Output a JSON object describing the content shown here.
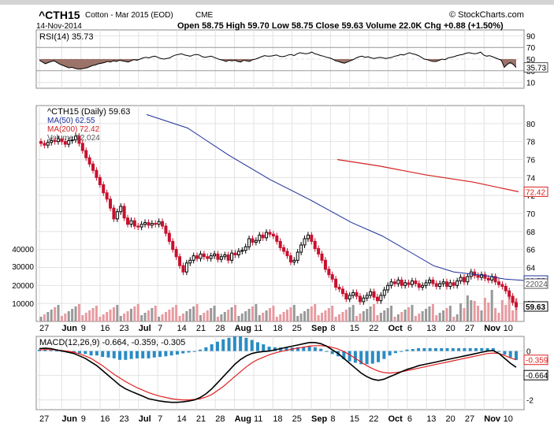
{
  "header": {
    "symbol": "^CTH15",
    "description": "Cotton - Mar 2015 (EOD)",
    "exchange": "CME",
    "copyright": "© StockCharts.com",
    "date": "14-Nov-2014",
    "ohlc_line": "Open 58.75  High 59.70  Low 58.75  Close 59.63  Volume 22.0K  Chg +0.88 (+1.50%)"
  },
  "colors": {
    "up": "#000000",
    "down": "#c8102e",
    "ma50": "#1f2f9a",
    "ma200": "#d42020",
    "rsi_fill": "#8b5a4f",
    "macd_hist": "#2a8cc4",
    "macd_line": "#000000",
    "signal_line": "#e02020",
    "volume": "#999999",
    "volume_down": "#e89aa0"
  },
  "chart_data": [
    {
      "type": "line",
      "title": "RSI(14) 35.73",
      "series": [
        {
          "name": "RSI(14)",
          "values": [
            48,
            45,
            42,
            44,
            46,
            47,
            44,
            41,
            39,
            37,
            35,
            36,
            34,
            33,
            33,
            34,
            35,
            37,
            39,
            40,
            42,
            43,
            44,
            46,
            45,
            47,
            46,
            48,
            47,
            46,
            45,
            47,
            49,
            48,
            50,
            52,
            53,
            52,
            54,
            55,
            53,
            51,
            50,
            51,
            52,
            55,
            57,
            58,
            59,
            57,
            56,
            55,
            57,
            58,
            57,
            54,
            53,
            54,
            55,
            53,
            51,
            49,
            48,
            46,
            48,
            47,
            48,
            46,
            45,
            48,
            47,
            46,
            49,
            50,
            52,
            54,
            56,
            55,
            55,
            56,
            57,
            55,
            54,
            55,
            57,
            58,
            56,
            59,
            61,
            60,
            59,
            60,
            62,
            59,
            58,
            56,
            55,
            53,
            52,
            50,
            47,
            46,
            44,
            43,
            45,
            47,
            49,
            52,
            54,
            55,
            53,
            54,
            52,
            51,
            52,
            53,
            52,
            51,
            52,
            53,
            55,
            56,
            58,
            57,
            59,
            61,
            59,
            58,
            56,
            53,
            50,
            49,
            47,
            46,
            46,
            48,
            50,
            49,
            52,
            53,
            54,
            56,
            57,
            58,
            60,
            61,
            60,
            59,
            60,
            62,
            57,
            55,
            56,
            54,
            52,
            50,
            48,
            36,
            41,
            44,
            41,
            35.73
          ]
        }
      ],
      "ylim": [
        0,
        100
      ],
      "yticks": [
        10,
        30,
        50,
        70,
        90
      ],
      "current_label": "35.73"
    },
    {
      "type": "candlestick",
      "title": "^CTH15 (Daily) 59.63",
      "legend": [
        "MA(50) 62.55",
        "MA(200) 72.42",
        "Volume 22,024"
      ],
      "ylim": [
        58,
        82
      ],
      "yticks": [
        60,
        62,
        64,
        66,
        68,
        70,
        72,
        74,
        76,
        78,
        80
      ],
      "volume_ticks": [
        "10000",
        "20000",
        "30000",
        "40000"
      ],
      "close": [
        77.8,
        77.6,
        77.9,
        78.1,
        78.0,
        78.3,
        78.0,
        77.7,
        78.1,
        78.2,
        78.6,
        77.8,
        77.0,
        76.2,
        75.5,
        74.8,
        74.0,
        73.2,
        72.3,
        71.6,
        70.6,
        69.4,
        70.2,
        70.8,
        69.5,
        68.8,
        69.2,
        68.6,
        68.5,
        68.8,
        69.0,
        68.7,
        68.9,
        68.8,
        69.1,
        68.6,
        67.8,
        66.9,
        66.0,
        65.2,
        64.2,
        63.5,
        64.5,
        64.8,
        65.3,
        65.0,
        65.5,
        65.2,
        65.0,
        65.3,
        65.5,
        64.9,
        65.2,
        65.4,
        64.8,
        65.6,
        65.4,
        65.8,
        65.9,
        66.3,
        67.2,
        66.8,
        67.0,
        67.6,
        67.3,
        67.9,
        67.7,
        67.5,
        66.9,
        66.2,
        65.8,
        65.3,
        64.6,
        64.8,
        65.7,
        66.5,
        67.2,
        67.6,
        66.9,
        66.1,
        65.5,
        64.8,
        63.8,
        63.2,
        62.7,
        61.8,
        61.6,
        61.1,
        60.5,
        60.9,
        61.2,
        60.8,
        60.2,
        60.6,
        60.9,
        61.3,
        60.7,
        60.3,
        60.9,
        61.5,
        62.0,
        62.4,
        62.2,
        62.6,
        62.0,
        62.3,
        62.1,
        62.5,
        62.2,
        61.8,
        62.0,
        62.3,
        62.6,
        62.2,
        61.9,
        62.2,
        62.4,
        61.9,
        62.3,
        62.0,
        62.5,
        62.9,
        62.4,
        63.0,
        63.5,
        63.1,
        62.9,
        63.2,
        62.8,
        62.6,
        63.0,
        62.4,
        62.1,
        61.9,
        61.4,
        60.8,
        60.1,
        59.63
      ]
    },
    {
      "type": "line",
      "title": "MACD(12,26,9) -0.664, -0.359, -0.305",
      "series": [
        {
          "name": "MACD",
          "values": [
            0.1,
            0.12,
            0.1,
            0.05,
            0,
            -0.05,
            -0.1,
            -0.2,
            -0.3,
            -0.45,
            -0.6,
            -0.8,
            -1.0,
            -1.2,
            -1.4,
            -1.55,
            -1.65,
            -1.75,
            -1.85,
            -1.95,
            -2.0,
            -2.05,
            -2.08,
            -2.1,
            -2.1,
            -2.08,
            -2.05,
            -2.0,
            -1.9,
            -1.75,
            -1.55,
            -1.3,
            -1.05,
            -0.8,
            -0.55,
            -0.35,
            -0.2,
            -0.1,
            -0.05,
            -0.02,
            0.0,
            0.05,
            0.1,
            0.15,
            0.2,
            0.25,
            0.3,
            0.35,
            0.35,
            0.3,
            0.2,
            0.05,
            -0.1,
            -0.3,
            -0.5,
            -0.7,
            -0.9,
            -1.05,
            -1.15,
            -1.2,
            -1.15,
            -1.05,
            -0.95,
            -0.85,
            -0.75,
            -0.68,
            -0.6,
            -0.55,
            -0.5,
            -0.45,
            -0.4,
            -0.35,
            -0.3,
            -0.25,
            -0.2,
            -0.15,
            -0.1,
            -0.05,
            0.0,
            0.02,
            -0.1,
            -0.3,
            -0.5,
            -0.664
          ]
        },
        {
          "name": "Signal",
          "values": [
            0.05,
            0.06,
            0.06,
            0.04,
            0.02,
            -0.01,
            -0.05,
            -0.12,
            -0.2,
            -0.3,
            -0.45,
            -0.6,
            -0.78,
            -0.95,
            -1.1,
            -1.25,
            -1.38,
            -1.5,
            -1.6,
            -1.7,
            -1.78,
            -1.85,
            -1.9,
            -1.95,
            -1.98,
            -2.0,
            -2.0,
            -1.98,
            -1.95,
            -1.88,
            -1.78,
            -1.62,
            -1.45,
            -1.25,
            -1.05,
            -0.85,
            -0.65,
            -0.48,
            -0.35,
            -0.25,
            -0.15,
            -0.08,
            -0.02,
            0.03,
            0.08,
            0.12,
            0.16,
            0.2,
            0.22,
            0.22,
            0.2,
            0.15,
            0.08,
            -0.02,
            -0.15,
            -0.3,
            -0.45,
            -0.6,
            -0.72,
            -0.82,
            -0.88,
            -0.9,
            -0.88,
            -0.85,
            -0.8,
            -0.75,
            -0.7,
            -0.65,
            -0.6,
            -0.55,
            -0.5,
            -0.45,
            -0.4,
            -0.35,
            -0.3,
            -0.25,
            -0.2,
            -0.15,
            -0.1,
            -0.08,
            -0.1,
            -0.18,
            -0.28,
            -0.359
          ]
        }
      ],
      "ylim": [
        -2.4,
        0.6
      ],
      "yticks": [
        0,
        -1,
        -2
      ],
      "current_labels": [
        "-0.359",
        "-0.664"
      ]
    }
  ],
  "x_axis": {
    "labels": [
      {
        "t": "27",
        "bold": false
      },
      {
        "t": "Jun",
        "bold": true
      },
      {
        "t": "9",
        "bold": false
      },
      {
        "t": "16",
        "bold": false
      },
      {
        "t": "23",
        "bold": false
      },
      {
        "t": "Jul",
        "bold": true
      },
      {
        "t": "7",
        "bold": false
      },
      {
        "t": "14",
        "bold": false
      },
      {
        "t": "21",
        "bold": false
      },
      {
        "t": "28",
        "bold": false
      },
      {
        "t": "Aug",
        "bold": true
      },
      {
        "t": "11",
        "bold": false
      },
      {
        "t": "18",
        "bold": false
      },
      {
        "t": "25",
        "bold": false
      },
      {
        "t": "Sep",
        "bold": true
      },
      {
        "t": "8",
        "bold": false
      },
      {
        "t": "15",
        "bold": false
      },
      {
        "t": "22",
        "bold": false
      },
      {
        "t": "Oct",
        "bold": true
      },
      {
        "t": "6",
        "bold": false
      },
      {
        "t": "13",
        "bold": false
      },
      {
        "t": "20",
        "bold": false
      },
      {
        "t": "27",
        "bold": false
      },
      {
        "t": "Nov",
        "bold": true
      },
      {
        "t": "10",
        "bold": false
      }
    ]
  },
  "labels": {
    "ma50_value": "62.55",
    "ma200_value": "72.42",
    "vol_value": "22024",
    "close_value": "59.63"
  }
}
